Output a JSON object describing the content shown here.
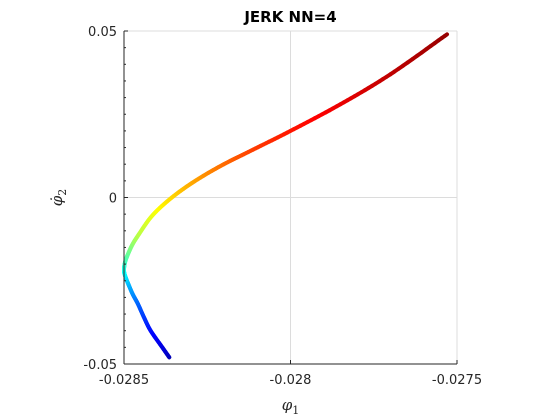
{
  "chart_data": {
    "type": "line",
    "title": "JERK NN=4",
    "xlabel_symbol": "φ",
    "xlabel_sub": "1",
    "ylabel_symbol": "φ̇",
    "ylabel_sub": "2",
    "xlim": [
      -0.0285,
      -0.0275
    ],
    "ylim": [
      -0.05,
      0.05
    ],
    "x_ticks": [
      -0.0285,
      -0.028,
      -0.0275
    ],
    "x_tick_labels": [
      "-0.0285",
      "-0.028",
      "-0.0275"
    ],
    "y_ticks": [
      -0.05,
      0,
      0.05
    ],
    "y_tick_labels": [
      "-0.05",
      "0",
      "0.05"
    ],
    "grid": true,
    "colormap": "jet",
    "series": [
      {
        "x": [
          -0.028364,
          -0.028385,
          -0.02842,
          -0.02844,
          -0.028458,
          -0.028474,
          -0.028487,
          -0.028495,
          -0.0285,
          -0.028497,
          -0.028488,
          -0.028474,
          -0.028455,
          -0.02842,
          -0.02838,
          -0.02833,
          -0.02827,
          -0.0282,
          -0.02812,
          -0.028,
          -0.02785,
          -0.0277,
          -0.02753
        ],
        "y": [
          -0.048,
          -0.045,
          -0.04,
          -0.036,
          -0.032,
          -0.029,
          -0.026,
          -0.024,
          -0.022,
          -0.0195,
          -0.017,
          -0.014,
          -0.011,
          -0.006,
          -0.002,
          0.002,
          0.006,
          0.01,
          0.014,
          0.02,
          0.028,
          0.037,
          0.049
        ]
      }
    ]
  }
}
